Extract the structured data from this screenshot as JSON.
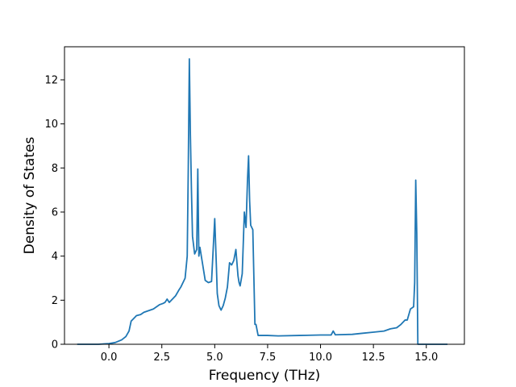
{
  "chart_data": {
    "type": "line",
    "title": "",
    "xlabel": "Frequency (THz)",
    "ylabel": "Density of States",
    "xlim": [
      -2.1,
      16.8
    ],
    "ylim": [
      0,
      13.5
    ],
    "grid": false,
    "legend": "none",
    "xticks": [
      0.0,
      2.5,
      5.0,
      7.5,
      10.0,
      12.5,
      15.0
    ],
    "xtick_labels": [
      "0.0",
      "2.5",
      "5.0",
      "7.5",
      "10.0",
      "12.5",
      "15.0"
    ],
    "yticks": [
      0,
      2,
      4,
      6,
      8,
      10,
      12
    ],
    "ytick_labels": [
      "0",
      "2",
      "4",
      "6",
      "8",
      "10",
      "12"
    ],
    "series": [
      {
        "color": "#1f77b4",
        "x": [
          -1.5,
          -0.5,
          0.0,
          0.3,
          0.6,
          0.8,
          0.95,
          1.05,
          1.15,
          1.3,
          1.5,
          1.65,
          1.8,
          1.95,
          2.1,
          2.25,
          2.4,
          2.55,
          2.65,
          2.75,
          2.85,
          3.0,
          3.15,
          3.3,
          3.4,
          3.5,
          3.6,
          3.7,
          3.75,
          3.8,
          3.85,
          3.9,
          3.95,
          4.05,
          4.15,
          4.2,
          4.25,
          4.3,
          4.4,
          4.55,
          4.7,
          4.85,
          5.0,
          5.08,
          5.12,
          5.2,
          5.3,
          5.4,
          5.5,
          5.6,
          5.7,
          5.8,
          5.9,
          6.0,
          6.1,
          6.15,
          6.2,
          6.3,
          6.4,
          6.48,
          6.55,
          6.6,
          6.65,
          6.7,
          6.8,
          6.9,
          6.95,
          7.0,
          7.05,
          7.2,
          7.5,
          8.0,
          9.0,
          10.0,
          10.5,
          10.6,
          10.7,
          11.5,
          12.0,
          12.5,
          13.0,
          13.3,
          13.6,
          13.8,
          14.0,
          14.1,
          14.25,
          14.4,
          14.45,
          14.5,
          14.55,
          14.6,
          15.0,
          15.5,
          16.0
        ],
        "y": [
          0.0,
          0.0,
          0.03,
          0.08,
          0.2,
          0.35,
          0.6,
          1.05,
          1.15,
          1.3,
          1.35,
          1.45,
          1.5,
          1.55,
          1.6,
          1.7,
          1.8,
          1.85,
          1.9,
          2.05,
          1.9,
          2.05,
          2.2,
          2.45,
          2.6,
          2.8,
          3.0,
          4.0,
          8.0,
          12.95,
          9.5,
          7.0,
          4.9,
          4.1,
          4.3,
          7.95,
          4.0,
          4.4,
          3.8,
          2.9,
          2.8,
          2.85,
          5.7,
          3.5,
          2.3,
          1.75,
          1.55,
          1.75,
          2.1,
          2.6,
          3.7,
          3.6,
          3.8,
          4.3,
          3.1,
          2.8,
          2.65,
          3.2,
          6.0,
          5.3,
          7.5,
          8.55,
          6.5,
          5.4,
          5.2,
          0.9,
          0.9,
          0.65,
          0.4,
          0.4,
          0.4,
          0.38,
          0.4,
          0.42,
          0.42,
          0.6,
          0.43,
          0.45,
          0.5,
          0.55,
          0.6,
          0.7,
          0.75,
          0.9,
          1.1,
          1.1,
          1.6,
          1.7,
          2.8,
          7.45,
          5.0,
          0.0,
          0.0,
          0.0,
          0.0
        ]
      }
    ]
  }
}
